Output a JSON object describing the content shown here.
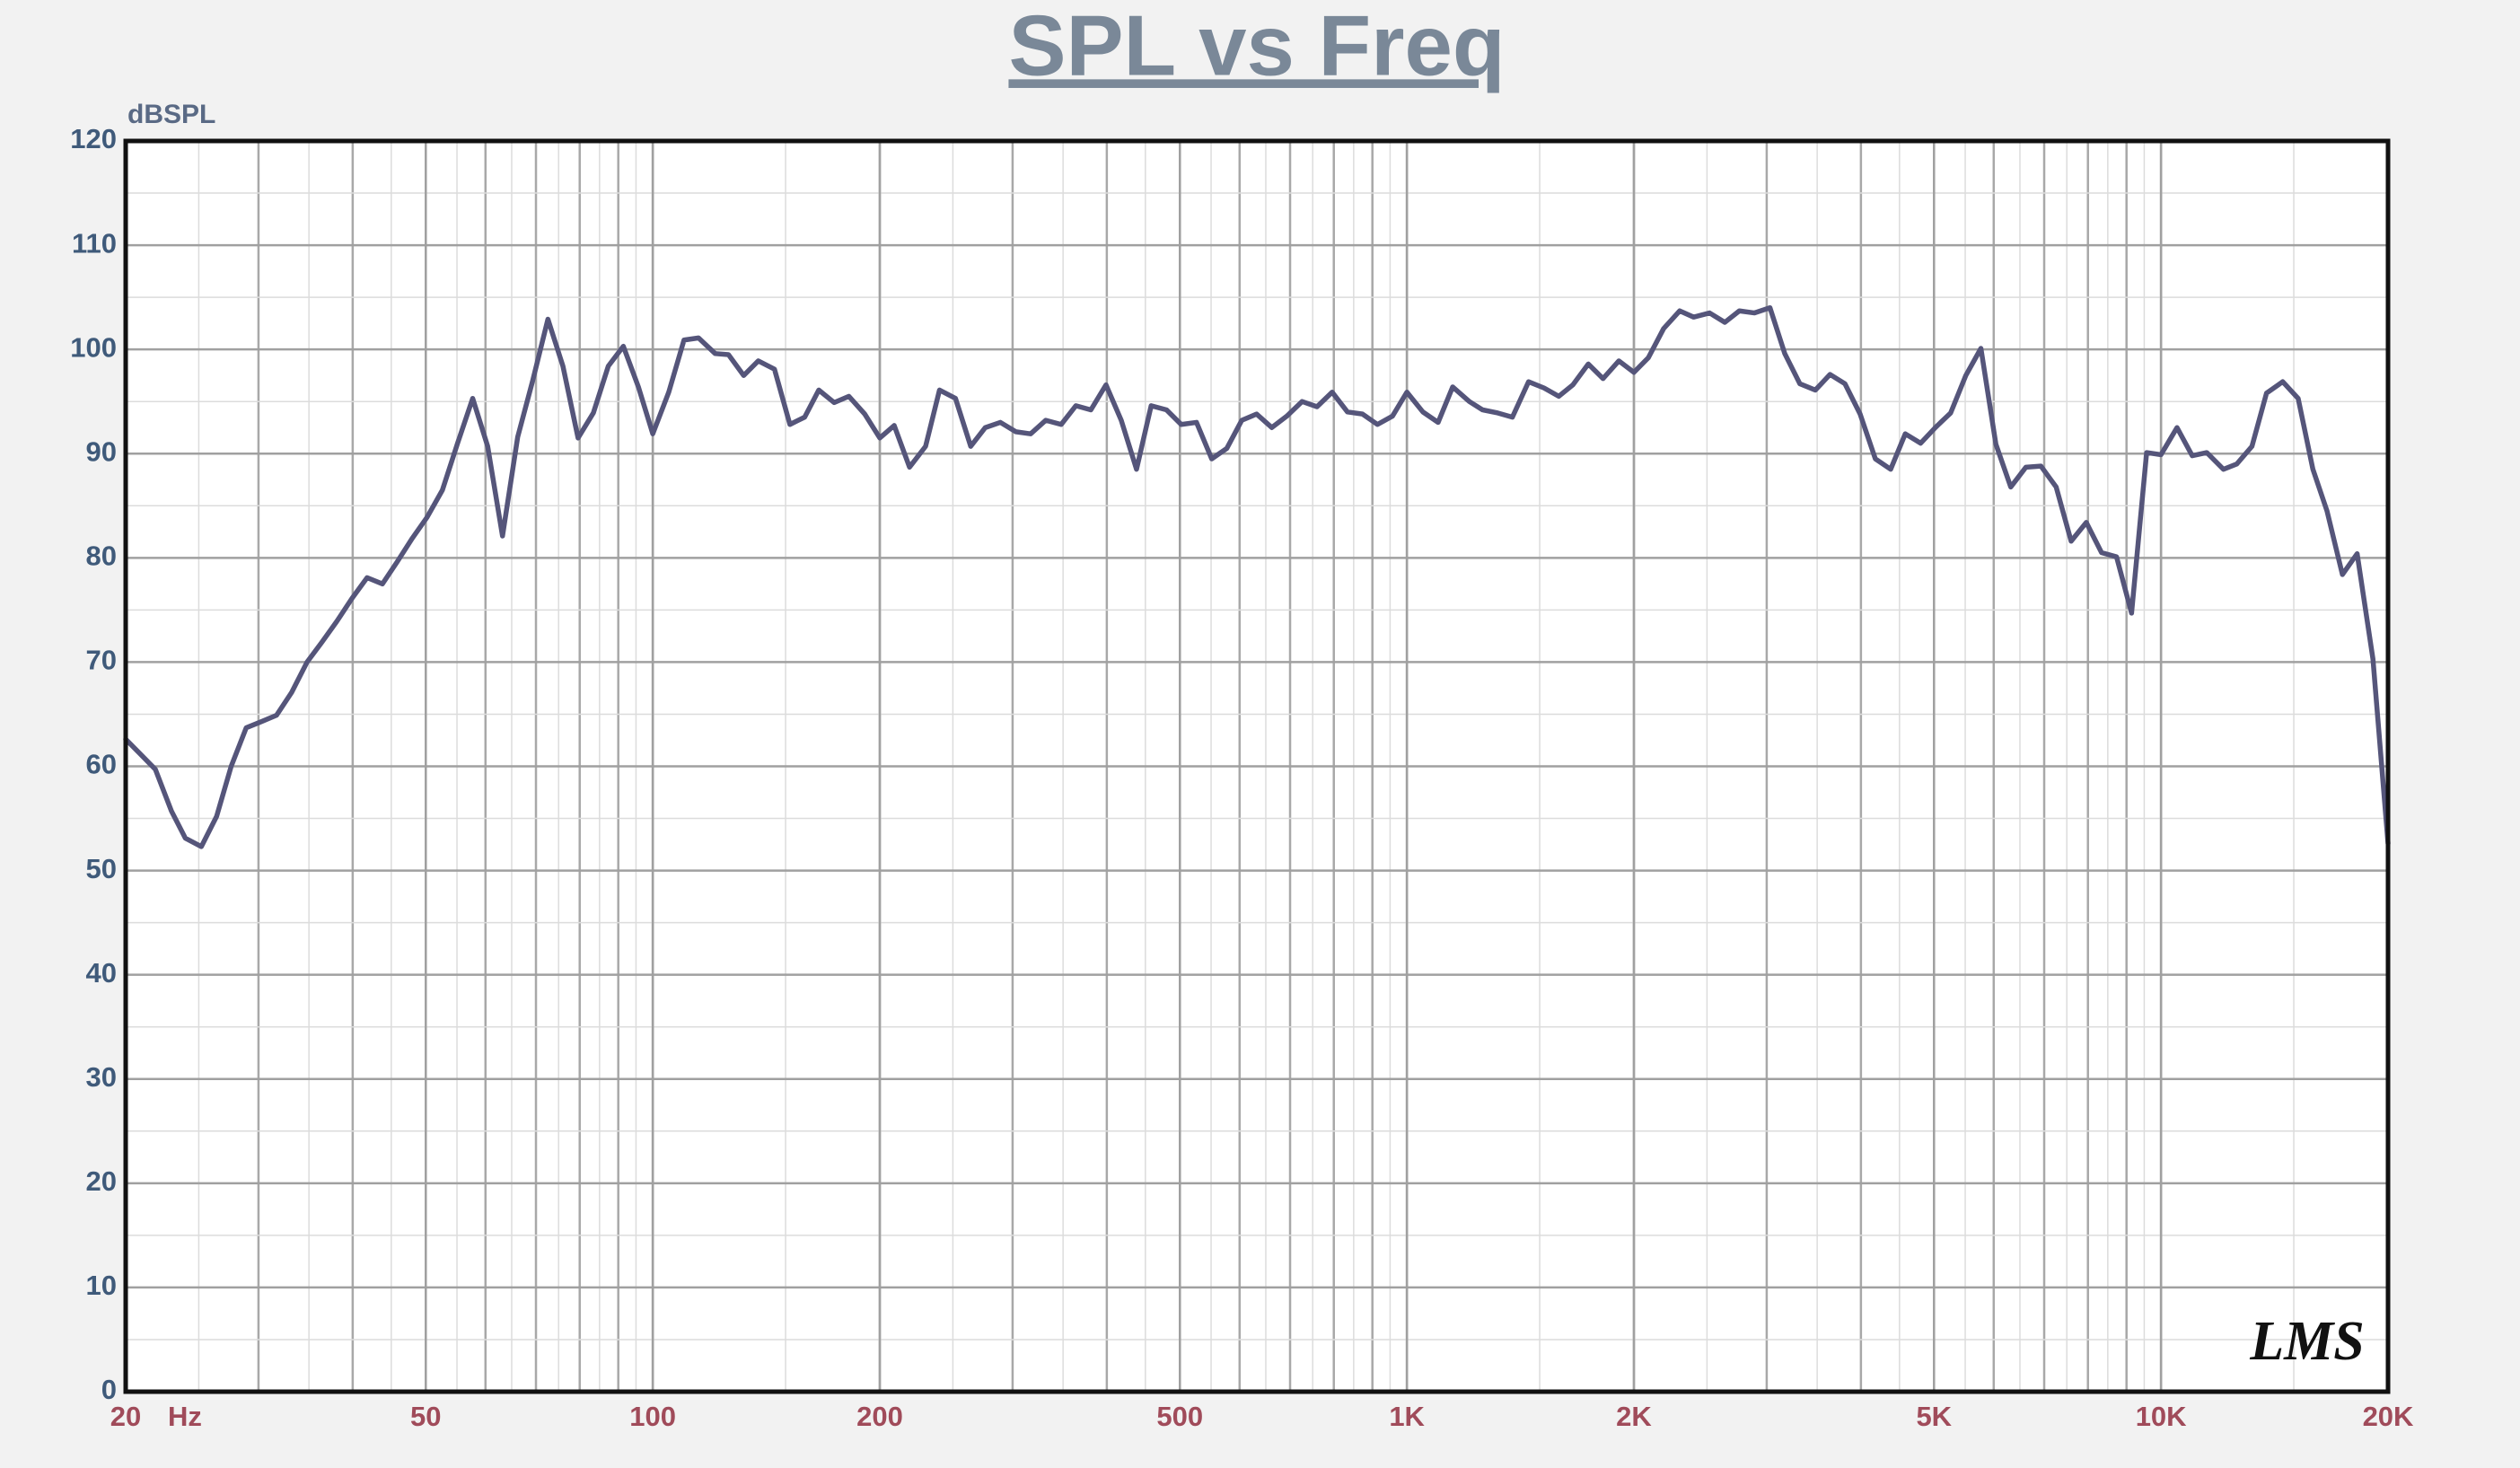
{
  "chart_data": {
    "type": "line",
    "title": "SPL vs Freq",
    "y_label": "dBSPL",
    "x_label": "Hz",
    "logo": "LMS",
    "x_scale": "log",
    "grid": true,
    "minor_grid": true,
    "color": "#55557a",
    "xlim": [
      20,
      20000
    ],
    "ylim": [
      0,
      120
    ],
    "yticks": [
      0,
      10,
      20,
      30,
      40,
      50,
      60,
      70,
      80,
      90,
      100,
      110,
      120
    ],
    "xticks": [
      20,
      50,
      100,
      200,
      500,
      {
        "value": 1000,
        "label": "1K"
      },
      {
        "value": 2000,
        "label": "2K"
      },
      {
        "value": 5000,
        "label": "5K"
      },
      {
        "value": 10000,
        "label": "10K"
      },
      {
        "value": 20000,
        "label": "20K"
      }
    ],
    "x": [
      20,
      20.9,
      21.9,
      23.0,
      24.0,
      25.2,
      26.4,
      27.6,
      28.9,
      30.3,
      31.7,
      33.2,
      34.8,
      36.4,
      38.1,
      39.9,
      41.8,
      43.8,
      45.8,
      48.0,
      50.2,
      52.6,
      55.1,
      57.7,
      60.4,
      63.2,
      66.2,
      69.3,
      72.6,
      76.0,
      79.6,
      83.4,
      87.3,
      91.4,
      95.7,
      100,
      105,
      110,
      115,
      121,
      126,
      132,
      138,
      145,
      152,
      159,
      166,
      174,
      182,
      191,
      200,
      209,
      219,
      230,
      240,
      252,
      264,
      276,
      289,
      303,
      317,
      332,
      348,
      364,
      381,
      399,
      418,
      438,
      458,
      480,
      502,
      526,
      551,
      577,
      604,
      632,
      662,
      693,
      726,
      760,
      796,
      834,
      873,
      914,
      957,
      1000,
      1050,
      1100,
      1150,
      1210,
      1260,
      1320,
      1380,
      1450,
      1520,
      1590,
      1660,
      1740,
      1820,
      1910,
      2000,
      2090,
      2190,
      2300,
      2400,
      2520,
      2640,
      2760,
      2890,
      3030,
      3170,
      3320,
      3480,
      3640,
      3810,
      3990,
      4180,
      4380,
      4580,
      4800,
      5020,
      5260,
      5510,
      5770,
      6040,
      6320,
      6620,
      6930,
      7260,
      7600,
      7960,
      8340,
      8730,
      9140,
      9570,
      10000,
      10500,
      11000,
      11500,
      12100,
      12600,
      13200,
      13800,
      14500,
      15200,
      15900,
      16600,
      17400,
      18200,
      19100,
      20000
    ],
    "values": [
      62.6,
      61.2,
      59.7,
      55.7,
      53.1,
      52.3,
      55.2,
      60.0,
      63.7,
      64.3,
      64.9,
      67.1,
      70.0,
      71.9,
      73.9,
      76.1,
      78.1,
      77.5,
      79.6,
      81.9,
      83.9,
      86.5,
      91.0,
      95.3,
      90.7,
      82.1,
      91.6,
      97.0,
      102.9,
      98.4,
      91.5,
      93.9,
      98.4,
      100.3,
      96.4,
      91.9,
      95.9,
      100.9,
      101.1,
      99.6,
      99.5,
      97.5,
      98.9,
      98.1,
      92.8,
      93.5,
      96.1,
      94.9,
      95.5,
      93.8,
      91.5,
      92.7,
      88.7,
      90.7,
      96.1,
      95.3,
      90.7,
      92.5,
      93.0,
      92.1,
      91.9,
      93.2,
      92.8,
      94.6,
      94.2,
      96.6,
      93.2,
      88.5,
      94.6,
      94.2,
      92.8,
      93.0,
      89.5,
      90.5,
      93.2,
      93.8,
      92.5,
      93.6,
      95.0,
      94.5,
      95.9,
      94.0,
      93.8,
      92.8,
      93.6,
      95.9,
      94.0,
      93.0,
      96.4,
      95.0,
      94.2,
      93.9,
      93.5,
      96.9,
      96.3,
      95.5,
      96.6,
      98.6,
      97.2,
      98.9,
      97.8,
      99.2,
      102.0,
      103.7,
      103.1,
      103.5,
      102.6,
      103.7,
      103.5,
      104.0,
      99.6,
      96.7,
      96.1,
      97.6,
      96.7,
      93.8,
      89.5,
      88.5,
      91.9,
      91.0,
      92.5,
      93.9,
      97.5,
      100.1,
      90.9,
      86.8,
      88.7,
      88.8,
      86.8,
      81.6,
      83.4,
      80.5,
      80.1,
      74.7,
      90.1,
      89.9,
      92.5,
      89.8,
      90.1,
      88.5,
      89.0,
      90.7,
      95.8,
      96.9,
      95.3,
      88.5,
      84.5,
      78.4,
      80.4,
      70.3,
      52.6
    ]
  }
}
